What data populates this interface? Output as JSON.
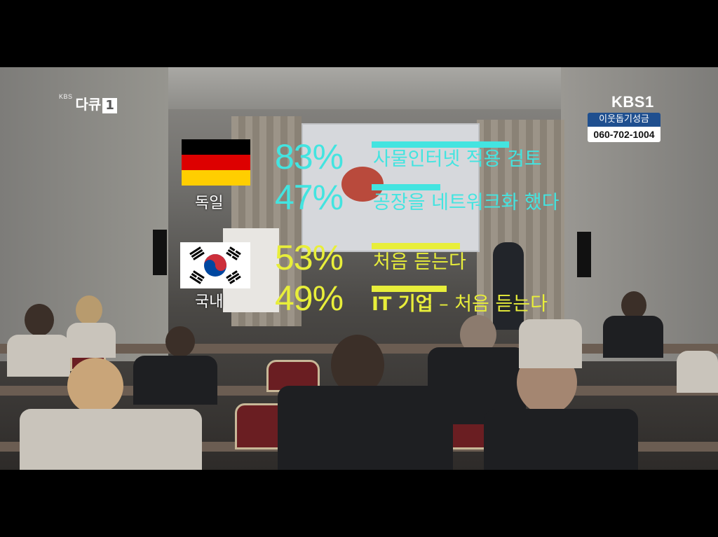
{
  "broadcast": {
    "channel_logo_small": "KBS",
    "channel_logo_main": "다큐",
    "channel_logo_number": "1",
    "network": "KBS1",
    "donation_label": "이웃돕기성금",
    "donation_phone": "060-702-1004"
  },
  "germany": {
    "label": "독일",
    "flag_colors": [
      "#000000",
      "#dd0000",
      "#ffce00"
    ],
    "stats": [
      {
        "percent": "83%",
        "caption": "사물인터넷 적용 검토",
        "color": "#43e4e0"
      },
      {
        "percent": "47%",
        "caption": "공장을 네트워크화 했다",
        "color": "#43e4e0"
      }
    ]
  },
  "korea": {
    "label": "국내",
    "stats": [
      {
        "percent": "53%",
        "caption": "처음 듣는다",
        "color": "#e8ee3a"
      },
      {
        "percent": "49%",
        "caption_bold": "IT 기업",
        "caption_rest": " – 처음 듣는다",
        "color": "#e8ee3a"
      }
    ]
  }
}
